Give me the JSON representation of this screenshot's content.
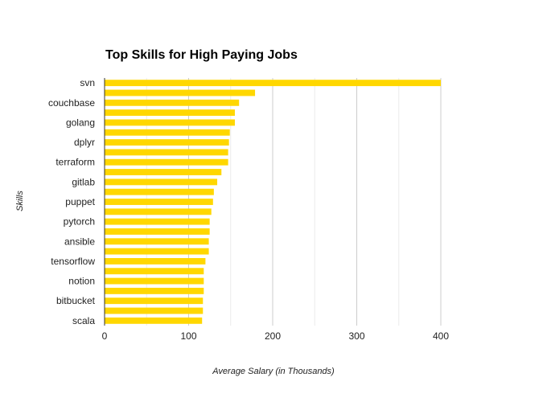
{
  "chart_data": {
    "type": "bar",
    "orientation": "horizontal",
    "title": "Top Skills for High Paying Jobs",
    "xlabel": "Average Salary (in Thousands)",
    "ylabel": "Skills",
    "xlim": [
      0,
      400
    ],
    "x_ticks": [
      "0",
      "100",
      "200",
      "300",
      "400"
    ],
    "grid": true,
    "bar_color": "#FFD700",
    "categories": [
      "svn",
      "",
      "couchbase",
      "",
      "golang",
      "",
      "dplyr",
      "",
      "terraform",
      "",
      "gitlab",
      "",
      "puppet",
      "",
      "pytorch",
      "",
      "ansible",
      "",
      "tensorflow",
      "",
      "notion",
      "",
      "bitbucket",
      "",
      "scala"
    ],
    "values": [
      400,
      179,
      160,
      155,
      155,
      149,
      148,
      147,
      147,
      139,
      134,
      130,
      129,
      127,
      125,
      125,
      124,
      124,
      120,
      118,
      118,
      118,
      117,
      117,
      116
    ]
  }
}
